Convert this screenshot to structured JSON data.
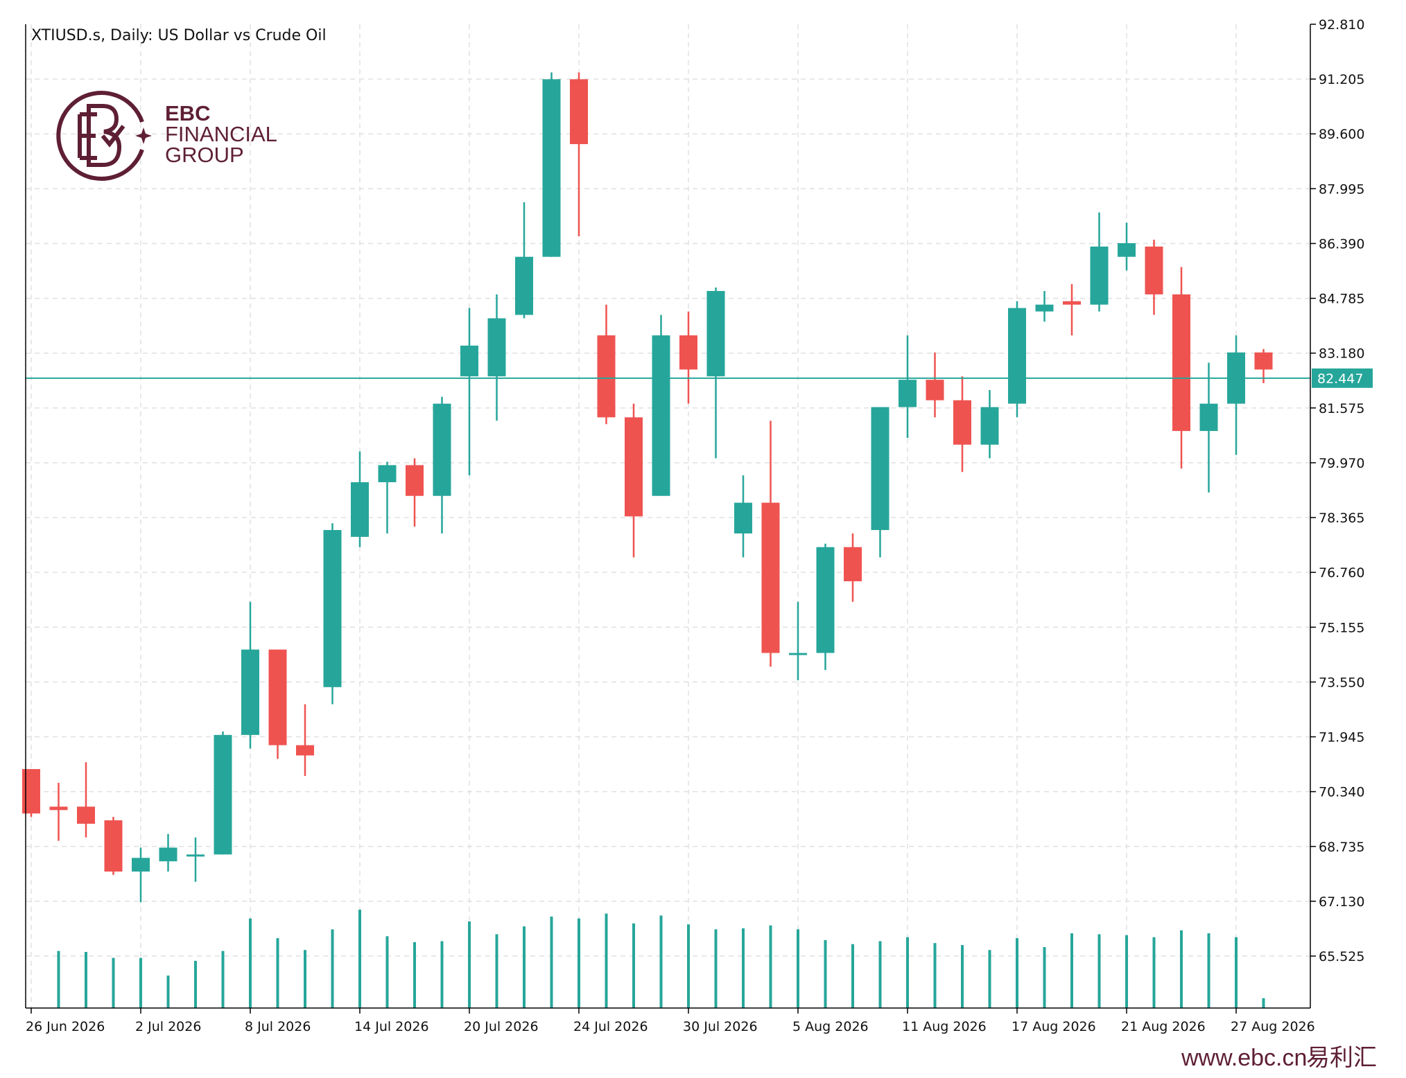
{
  "chart_title": "XTIUSD.s, Daily:  US Dollar vs Crude Oil",
  "logo": {
    "line1": "EBC",
    "line2": "FINANCIAL",
    "line3": "GROUP"
  },
  "footer": {
    "url": "www.ebc.cn",
    "cn_text": "易利汇"
  },
  "colors": {
    "up": "#26a69a",
    "down": "#ef5350",
    "grid": "#e0e0e0",
    "axis": "#000000",
    "brand": "#5e1f35"
  },
  "chart_data": {
    "type": "candlestick",
    "title": "XTIUSD.s, Daily:  US Dollar vs Crude Oil",
    "ylim": [
      65.525,
      92.81
    ],
    "y_ticks": [
      "92.810",
      "91.205",
      "89.600",
      "87.995",
      "86.390",
      "84.785",
      "83.180",
      "81.575",
      "79.970",
      "78.365",
      "76.760",
      "75.155",
      "73.550",
      "71.945",
      "70.340",
      "68.735",
      "67.130",
      "65.525"
    ],
    "current_price": "82.447",
    "x_labels": [
      {
        "label": "26 Jun 2026",
        "index": 0
      },
      {
        "label": "2 Jul 2026",
        "index": 4
      },
      {
        "label": "8 Jul 2026",
        "index": 8
      },
      {
        "label": "14 Jul 2026",
        "index": 12
      },
      {
        "label": "20 Jul 2026",
        "index": 16
      },
      {
        "label": "24 Jul 2026",
        "index": 20
      },
      {
        "label": "30 Jul 2026",
        "index": 24
      },
      {
        "label": "5 Aug 2026",
        "index": 28
      },
      {
        "label": "11 Aug 2026",
        "index": 32
      },
      {
        "label": "17 Aug 2026",
        "index": 36
      },
      {
        "label": "21 Aug 2026",
        "index": 40
      },
      {
        "label": "27 Aug 2026",
        "index": 44
      }
    ],
    "candles": [
      {
        "o": 71.0,
        "h": 71.0,
        "l": 69.6,
        "c": 69.7
      },
      {
        "o": 69.9,
        "h": 70.6,
        "l": 68.9,
        "c": 69.8
      },
      {
        "o": 69.9,
        "h": 71.2,
        "l": 69.0,
        "c": 69.4
      },
      {
        "o": 69.5,
        "h": 69.6,
        "l": 67.9,
        "c": 68.0
      },
      {
        "o": 68.0,
        "h": 68.7,
        "l": 67.1,
        "c": 68.4
      },
      {
        "o": 68.3,
        "h": 69.1,
        "l": 68.0,
        "c": 68.7
      },
      {
        "o": 68.5,
        "h": 69.0,
        "l": 67.7,
        "c": 68.5
      },
      {
        "o": 68.5,
        "h": 72.1,
        "l": 68.5,
        "c": 72.0
      },
      {
        "o": 72.0,
        "h": 75.9,
        "l": 71.6,
        "c": 74.5
      },
      {
        "o": 74.5,
        "h": 74.5,
        "l": 71.3,
        "c": 71.7
      },
      {
        "o": 71.7,
        "h": 72.9,
        "l": 70.8,
        "c": 71.4
      },
      {
        "o": 73.4,
        "h": 78.2,
        "l": 72.9,
        "c": 78.0
      },
      {
        "o": 77.8,
        "h": 80.3,
        "l": 77.5,
        "c": 79.4
      },
      {
        "o": 79.4,
        "h": 80.0,
        "l": 77.9,
        "c": 79.9
      },
      {
        "o": 79.9,
        "h": 80.1,
        "l": 78.1,
        "c": 79.0
      },
      {
        "o": 79.0,
        "h": 81.9,
        "l": 77.9,
        "c": 81.7
      },
      {
        "o": 82.5,
        "h": 84.5,
        "l": 79.6,
        "c": 83.4
      },
      {
        "o": 82.5,
        "h": 84.9,
        "l": 81.2,
        "c": 84.2
      },
      {
        "o": 84.3,
        "h": 87.6,
        "l": 84.2,
        "c": 86.0
      },
      {
        "o": 86.0,
        "h": 91.4,
        "l": 86.0,
        "c": 91.2
      },
      {
        "o": 91.2,
        "h": 91.4,
        "l": 86.6,
        "c": 89.3
      },
      {
        "o": 83.7,
        "h": 84.6,
        "l": 81.1,
        "c": 81.3
      },
      {
        "o": 81.3,
        "h": 81.7,
        "l": 77.2,
        "c": 78.4
      },
      {
        "o": 79.0,
        "h": 84.3,
        "l": 79.0,
        "c": 83.7
      },
      {
        "o": 83.7,
        "h": 84.4,
        "l": 81.7,
        "c": 82.7
      },
      {
        "o": 82.5,
        "h": 85.1,
        "l": 80.1,
        "c": 85.0
      },
      {
        "o": 77.9,
        "h": 79.6,
        "l": 77.2,
        "c": 78.8
      },
      {
        "o": 78.8,
        "h": 81.2,
        "l": 74.0,
        "c": 74.4
      },
      {
        "o": 74.4,
        "h": 75.9,
        "l": 73.6,
        "c": 74.4
      },
      {
        "o": 74.4,
        "h": 77.6,
        "l": 73.9,
        "c": 77.5
      },
      {
        "o": 77.5,
        "h": 77.9,
        "l": 75.9,
        "c": 76.5
      },
      {
        "o": 78.0,
        "h": 81.6,
        "l": 77.2,
        "c": 81.6
      },
      {
        "o": 81.6,
        "h": 83.7,
        "l": 80.7,
        "c": 82.4
      },
      {
        "o": 82.4,
        "h": 83.2,
        "l": 81.3,
        "c": 81.8
      },
      {
        "o": 81.8,
        "h": 82.5,
        "l": 79.7,
        "c": 80.5
      },
      {
        "o": 80.5,
        "h": 82.1,
        "l": 80.1,
        "c": 81.6
      },
      {
        "o": 81.7,
        "h": 84.7,
        "l": 81.3,
        "c": 84.5
      },
      {
        "o": 84.4,
        "h": 85.0,
        "l": 84.1,
        "c": 84.6
      },
      {
        "o": 84.7,
        "h": 85.2,
        "l": 83.7,
        "c": 84.6
      },
      {
        "o": 84.6,
        "h": 87.3,
        "l": 84.4,
        "c": 86.3
      },
      {
        "o": 86.0,
        "h": 87.0,
        "l": 85.6,
        "c": 86.4
      },
      {
        "o": 86.3,
        "h": 86.5,
        "l": 84.3,
        "c": 84.9
      },
      {
        "o": 84.9,
        "h": 85.7,
        "l": 79.8,
        "c": 80.9
      },
      {
        "o": 80.9,
        "h": 82.9,
        "l": 79.1,
        "c": 81.7
      },
      {
        "o": 81.7,
        "h": 83.7,
        "l": 80.2,
        "c": 83.2
      },
      {
        "o": 83.2,
        "h": 83.3,
        "l": 82.3,
        "c": 82.7
      }
    ],
    "volumes": [
      null,
      0.58,
      0.57,
      0.51,
      0.51,
      0.33,
      0.48,
      0.58,
      0.91,
      0.71,
      0.59,
      0.8,
      1.0,
      0.73,
      0.67,
      0.68,
      0.88,
      0.75,
      0.83,
      0.93,
      0.91,
      0.96,
      0.86,
      0.94,
      0.85,
      0.8,
      0.81,
      0.84,
      0.8,
      0.69,
      0.65,
      0.68,
      0.72,
      0.66,
      0.64,
      0.59,
      0.71,
      0.62,
      0.76,
      0.75,
      0.74,
      0.72,
      0.79,
      0.76,
      0.72,
      0.1
    ]
  }
}
